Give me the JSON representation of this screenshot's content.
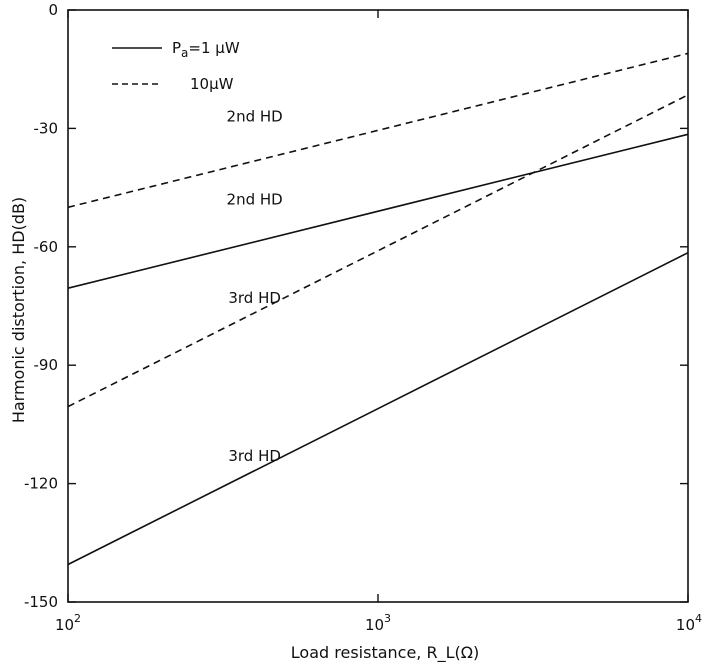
{
  "chart_data": {
    "type": "line",
    "title": "",
    "xlabel": "Load resistance, R_L(Ω)",
    "ylabel": "Harmonic distortion, HD(dB)",
    "xscale": "log",
    "xlim": [
      100,
      10000
    ],
    "ylim": [
      -150,
      0
    ],
    "xticks": [
      100,
      1000,
      10000
    ],
    "xtick_labels": [
      {
        "base": "10",
        "exp": "2"
      },
      {
        "base": "10",
        "exp": "3"
      },
      {
        "base": "10",
        "exp": "4"
      }
    ],
    "yticks": [
      0,
      -30,
      -60,
      -90,
      -120,
      -150
    ],
    "ytick_labels": [
      "0",
      "-30",
      "-60",
      "-90",
      "-120",
      "-150"
    ],
    "grid": false,
    "legend": {
      "position": "top-left",
      "entries": [
        {
          "label_main": "P",
          "label_sub": "a",
          "label_rest": "=1 μW",
          "style": "solid"
        },
        {
          "label_main": "10μW",
          "label_sub": "",
          "label_rest": "",
          "style": "dashed"
        }
      ]
    },
    "series": [
      {
        "name": "2nd HD",
        "power": "1 μW",
        "style": "solid",
        "x": [
          100,
          10000
        ],
        "y": [
          -70.5,
          -31.5
        ]
      },
      {
        "name": "3rd HD",
        "power": "1 μW",
        "style": "solid",
        "x": [
          100,
          10000
        ],
        "y": [
          -140.5,
          -61.5
        ]
      },
      {
        "name": "2nd HD",
        "power": "10 μW",
        "style": "dashed",
        "x": [
          100,
          10000
        ],
        "y": [
          -50,
          -11
        ]
      },
      {
        "name": "3rd HD",
        "power": "10 μW",
        "style": "dashed",
        "x": [
          100,
          10000
        ],
        "y": [
          -100.5,
          -21.5
        ]
      }
    ],
    "annotations": [
      {
        "text": "2nd HD",
        "x": 400,
        "y": -27
      },
      {
        "text": "2nd HD",
        "x": 400,
        "y": -48
      },
      {
        "text": "3rd HD",
        "x": 400,
        "y": -73
      },
      {
        "text": "3rd HD",
        "x": 400,
        "y": -113
      }
    ]
  }
}
